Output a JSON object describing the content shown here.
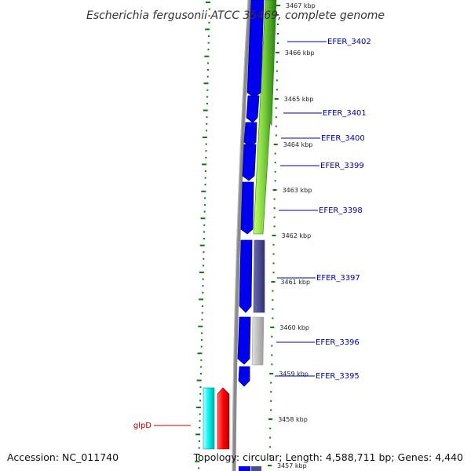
{
  "title": "Escherichia fergusonii ATCC 35469, complete genome",
  "footer": {
    "accession": "Accession: NC_011740",
    "summary": "Topology: circular; Length: 4,588,711 bp; Genes: 4,440"
  },
  "colors": {
    "background": "#ffffff",
    "backbone": "#888888",
    "gc_skew_ticks": "#117711",
    "forward_cds": "#0000ee",
    "forward_cds_edge": "#00008b",
    "similarity_green": "#44aa22",
    "similarity_light_green": "#b8f060",
    "similarity_purple": "#4b4b90",
    "similarity_grey": "#bdbdbd",
    "reverse_rna": "#ff0000",
    "reverse_rna_light": "#00e8e8",
    "label_line_blue": "#0000aa",
    "label_line_red": "#cc0000"
  },
  "scale_ticks": [
    {
      "label": "3467 kbp",
      "pos": 3467.0
    },
    {
      "label": "3466 kbp",
      "pos": 3466.0
    },
    {
      "label": "3465 kbp",
      "pos": 3465.0
    },
    {
      "label": "3464 kbp",
      "pos": 3464.0
    },
    {
      "label": "3463 kbp",
      "pos": 3463.0
    },
    {
      "label": "3462 kbp",
      "pos": 3462.0
    },
    {
      "label": "3461 kbp",
      "pos": 3461.0
    },
    {
      "label": "3460 kbp",
      "pos": 3460.0
    },
    {
      "label": "3459 kbp",
      "pos": 3459.0
    },
    {
      "label": "3458 kbp",
      "pos": 3458.0
    },
    {
      "label": "3457 kbp",
      "pos": 3457.0
    }
  ],
  "gene_labels": [
    {
      "name": "EFER_3402",
      "side": "right",
      "color": "#0000aa"
    },
    {
      "name": "EFER_3401",
      "side": "right",
      "color": "#0000aa"
    },
    {
      "name": "EFER_3400",
      "side": "right",
      "color": "#0000aa"
    },
    {
      "name": "EFER_3399",
      "side": "right",
      "color": "#0000aa"
    },
    {
      "name": "EFER_3398",
      "side": "right",
      "color": "#0000aa"
    },
    {
      "name": "EFER_3397",
      "side": "right",
      "color": "#0000aa"
    },
    {
      "name": "EFER_3396",
      "side": "right",
      "color": "#0000aa"
    },
    {
      "name": "EFER_3395",
      "side": "right",
      "color": "#0000aa"
    },
    {
      "name": "glpD",
      "side": "left",
      "color": "#cc0000"
    }
  ]
}
